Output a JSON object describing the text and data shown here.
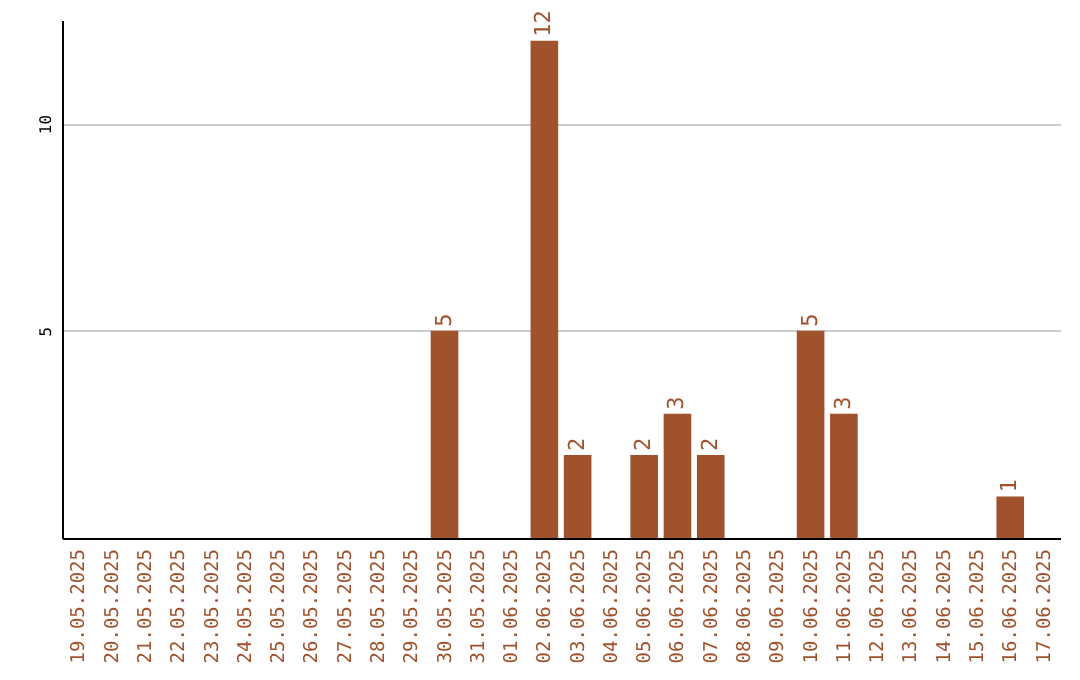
{
  "chart_data": {
    "type": "bar",
    "categories": [
      "19.05.2025",
      "20.05.2025",
      "21.05.2025",
      "22.05.2025",
      "23.05.2025",
      "24.05.2025",
      "25.05.2025",
      "26.05.2025",
      "27.05.2025",
      "28.05.2025",
      "29.05.2025",
      "30.05.2025",
      "31.05.2025",
      "01.06.2025",
      "02.06.2025",
      "03.06.2025",
      "04.06.2025",
      "05.06.2025",
      "06.06.2025",
      "07.06.2025",
      "08.06.2025",
      "09.06.2025",
      "10.06.2025",
      "11.06.2025",
      "12.06.2025",
      "13.06.2025",
      "14.06.2025",
      "15.06.2025",
      "16.06.2025",
      "17.06.2025"
    ],
    "values": [
      0,
      0,
      0,
      0,
      0,
      0,
      0,
      0,
      0,
      0,
      0,
      5,
      0,
      0,
      12,
      2,
      0,
      2,
      3,
      2,
      0,
      0,
      5,
      3,
      0,
      0,
      0,
      0,
      1,
      0
    ],
    "value_labels": [
      null,
      null,
      null,
      null,
      null,
      null,
      null,
      null,
      null,
      null,
      null,
      "5",
      null,
      null,
      "12",
      "2",
      null,
      "2",
      "3",
      "2",
      null,
      null,
      "5",
      "3",
      null,
      null,
      null,
      null,
      "1",
      null
    ],
    "color": "#a0522d",
    "ylim": [
      0,
      12.5
    ],
    "yticks": [
      5,
      10
    ],
    "grid": "y"
  }
}
